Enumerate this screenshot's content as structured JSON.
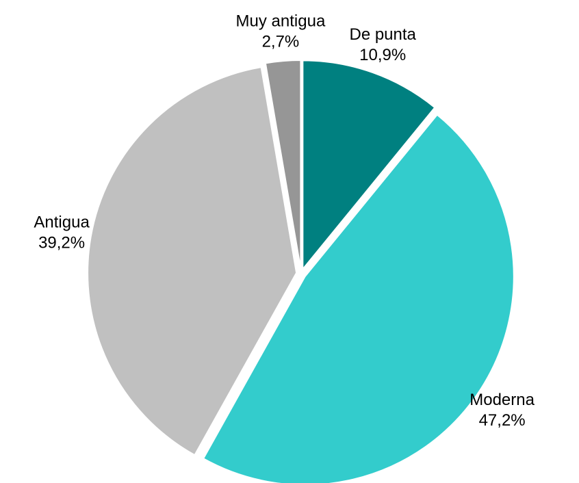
{
  "chart_data": {
    "type": "pie",
    "categories": [
      "De punta",
      "Moderna",
      "Antigua",
      "Muy antigua"
    ],
    "values": [
      10.9,
      47.2,
      39.2,
      2.7
    ],
    "value_labels": [
      "10,9%",
      "47,2%",
      "39,2%",
      "2,7%"
    ],
    "colors": [
      "#008080",
      "#33cccc",
      "#c0c0c0",
      "#969696"
    ]
  }
}
